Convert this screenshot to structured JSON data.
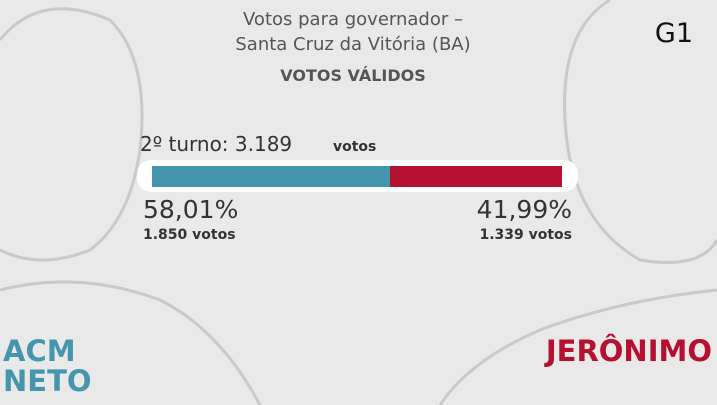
{
  "chart_data": {
    "type": "split-bar",
    "title_lines": [
      "Votos para governador –",
      "Santa Cruz da Vitória (BA)"
    ],
    "heading": "VOTOS VÁLIDOS",
    "total_label": "2º turno: 3.189",
    "total_unit": "votos",
    "brand": "G1",
    "series": [
      {
        "name": "ACM NETO",
        "color": "#4596ad",
        "values": [
          58.01
        ],
        "value_labels": [
          "58,01%"
        ],
        "vote_labels": [
          "1.850 votos"
        ]
      },
      {
        "name": "JERÔNIMO",
        "color": "#b5102f",
        "values": [
          41.99
        ],
        "value_labels": [
          "41,99%"
        ],
        "vote_labels": [
          "1.339 votos"
        ]
      }
    ]
  }
}
